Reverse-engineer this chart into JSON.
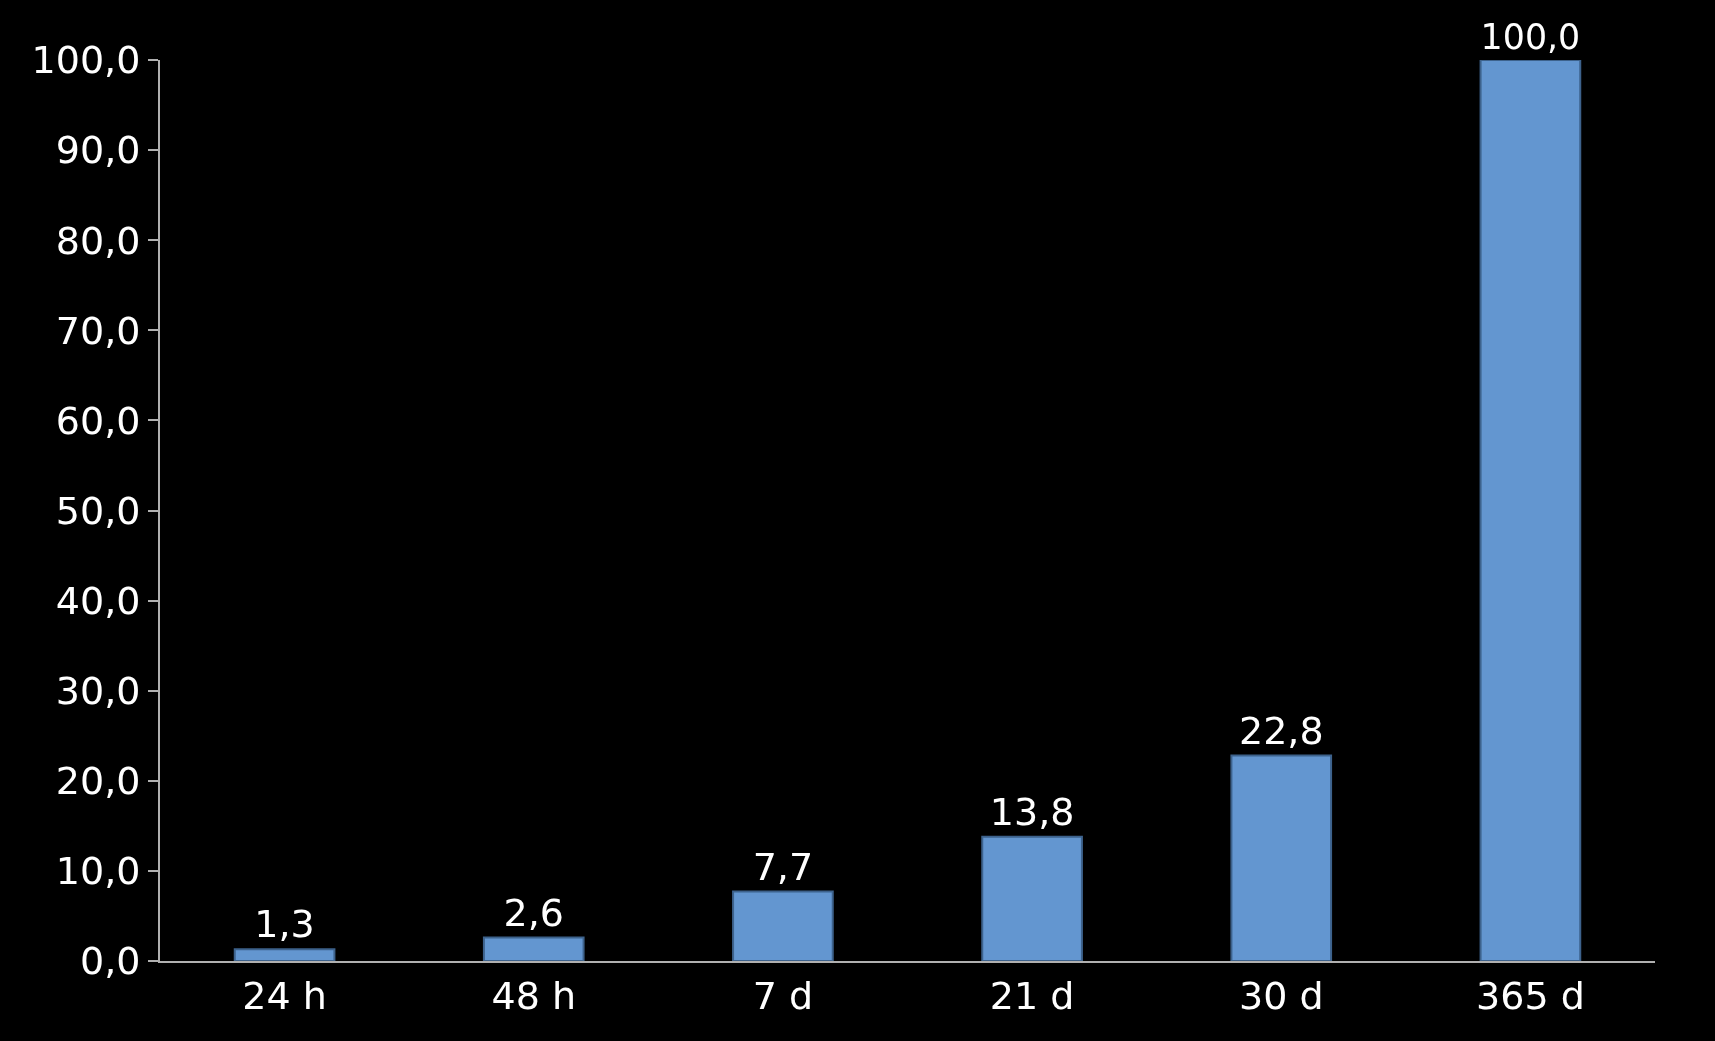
{
  "chart_data": {
    "type": "bar",
    "categories": [
      "24 h",
      "48 h",
      "7 d",
      "21 d",
      "30 d",
      "365 d"
    ],
    "values": [
      1.3,
      2.6,
      7.7,
      13.8,
      22.8,
      100.0
    ],
    "value_labels": [
      "1,3",
      "2,6",
      "7,7",
      "13,8",
      "22,8",
      "100,0"
    ],
    "color": "#6396d0",
    "ylim": [
      0,
      100
    ],
    "yticks": [
      {
        "value": 0,
        "label": "0,0"
      },
      {
        "value": 10,
        "label": "10,0"
      },
      {
        "value": 20,
        "label": "20,0"
      },
      {
        "value": 30,
        "label": "30,0"
      },
      {
        "value": 40,
        "label": "40,0"
      },
      {
        "value": 50,
        "label": "50,0"
      },
      {
        "value": 60,
        "label": "60,0"
      },
      {
        "value": 70,
        "label": "70,0"
      },
      {
        "value": 80,
        "label": "80,0"
      },
      {
        "value": 90,
        "label": "90,0"
      },
      {
        "value": 100,
        "label": "100,0"
      }
    ],
    "grid": false
  }
}
